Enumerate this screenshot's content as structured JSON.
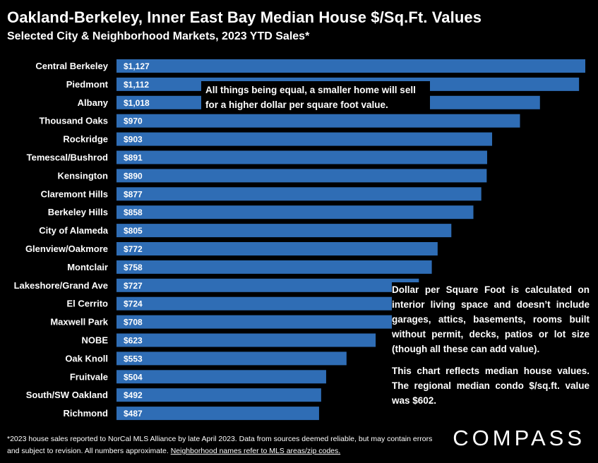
{
  "chart_data": {
    "type": "bar",
    "orientation": "horizontal",
    "title": "Oakland-Berkeley, Inner East Bay Median House $/Sq.Ft. Values",
    "subtitle": "Selected City & Neighborhood Markets, 2023 YTD Sales*",
    "categories": [
      "Central Berkeley",
      "Piedmont",
      "Albany",
      "Thousand Oaks",
      "Rockridge",
      "Temescal/Bushrod",
      "Kensington",
      "Claremont Hills",
      "Berkeley Hills",
      "City of Alameda",
      "Glenview/Oakmore",
      "Montclair",
      "Lakeshore/Grand Ave",
      "El Cerrito",
      "Maxwell Park",
      "NOBE",
      "Oak Knoll",
      "Fruitvale",
      "South/SW Oakland",
      "Richmond"
    ],
    "values": [
      1127,
      1112,
      1018,
      970,
      903,
      891,
      890,
      877,
      858,
      805,
      772,
      758,
      727,
      724,
      708,
      623,
      553,
      504,
      492,
      487
    ],
    "value_labels": [
      "$1,127",
      "$1,112",
      "$1,018",
      "$970",
      "$903",
      "$891",
      "$890",
      "$877",
      "$858",
      "$805",
      "$772",
      "$758",
      "$727",
      "$724",
      "$708",
      "$623",
      "$553",
      "$504",
      "$492",
      "$487"
    ],
    "bar_color": "#2f6db5",
    "grid": false,
    "legend": "none"
  },
  "annotations": {
    "top_note": "All things being equal, a smaller home will sell for a higher dollar per square foot value.",
    "side_note_1": "Dollar per Square Foot is calculated on interior living space and doesn’t include garages, attics, basements, rooms built without permit, decks, patios or lot size (though all these can add value).",
    "side_note_2": "This chart reflects median house values. The regional median condo $/sq.ft. value was $602."
  },
  "footer": {
    "text": "*2023 house sales reported to NorCal MLS Alliance by late April 2023. Data from sources deemed reliable, but may contain errors and subject to revision. All numbers approximate. ",
    "link": "Neighborhood names refer to MLS areas/zip codes."
  },
  "brand": {
    "logo": "COMPASS"
  }
}
